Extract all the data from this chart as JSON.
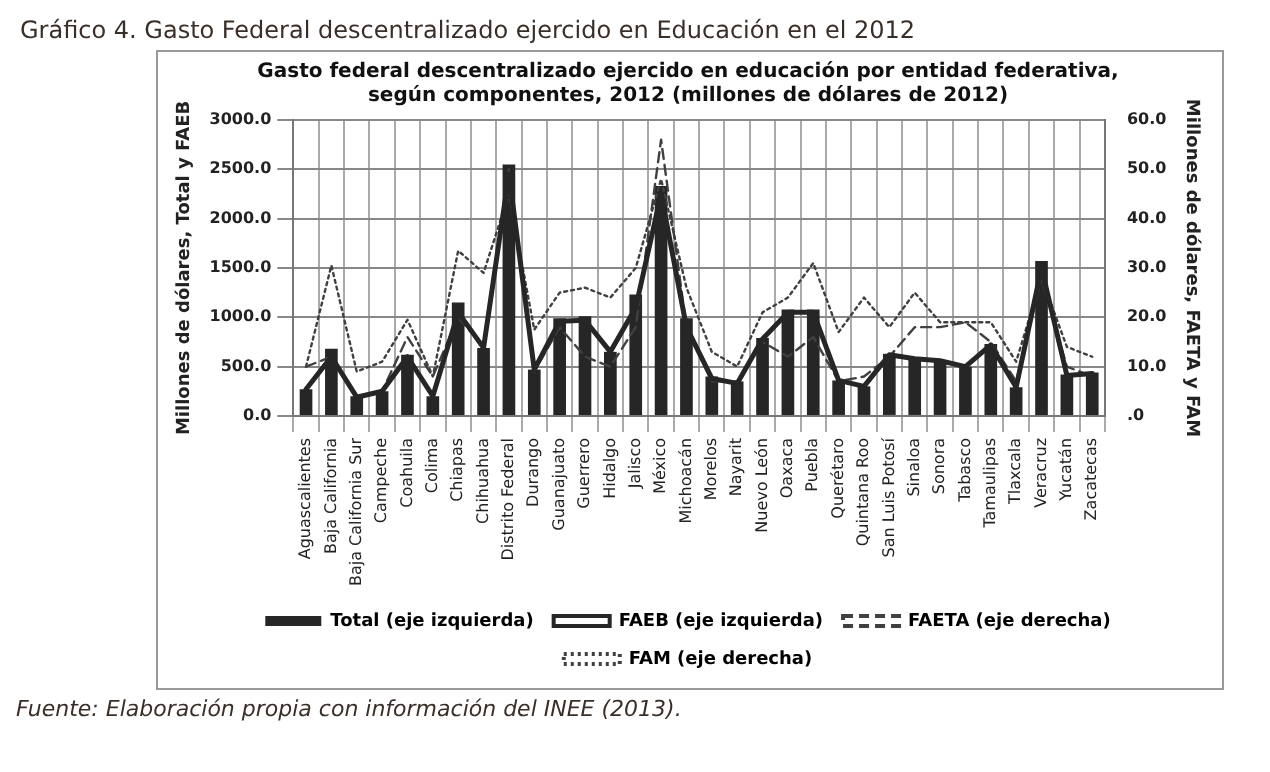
{
  "chart_data": {
    "type": "bar",
    "title": "Gráfico 4. Gasto Federal descentralizado ejercido en Educación en el 2012",
    "subtitle": "Gasto federal descentralizado ejercido en educación por entidad federativa, según componentes, 2012 (millones de dólares de 2012)",
    "ylabel": "Millones de dólares, Total y FAEB",
    "y2label": "Millones de dólares, FAETA y FAM",
    "annotations": [
      "Fuente: Elaboración propia con información del INEE (2013)."
    ],
    "categories": [
      "Aguascalientes",
      "Baja California",
      "Baja California Sur",
      "Campeche",
      "Coahuila",
      "Colima",
      "Chiapas",
      "Chihuahua",
      "Distrito Federal",
      "Durango",
      "Guanajuato",
      "Guerrero",
      "Hidalgo",
      "Jalisco",
      "México",
      "Michoacán",
      "Morelos",
      "Nayarit",
      "Nuevo León",
      "Oaxaca",
      "Puebla",
      "Querétaro",
      "Quintana Roo",
      "San Luis Potosí",
      "Sinaloa",
      "Sonora",
      "Tabasco",
      "Tamaulipas",
      "Tlaxcala",
      "Veracruz",
      "Yucatán",
      "Zacatecas"
    ],
    "series": [
      {
        "name": "Total (eje izquierda)",
        "color": "#262626",
        "values": [
          270,
          680,
          200,
          250,
          620,
          200,
          1150,
          690,
          2550,
          470,
          990,
          1010,
          650,
          1230,
          2330,
          990,
          400,
          350,
          790,
          1080,
          1080,
          360,
          300,
          630,
          590,
          560,
          500,
          730,
          290,
          1570,
          420,
          440
        ]
      },
      {
        "name": "FAEB (eje izquierda)",
        "type": "line",
        "color": "#262626",
        "line_style": "solid",
        "values": [
          270,
          600,
          190,
          250,
          600,
          200,
          1050,
          690,
          2450,
          470,
          960,
          970,
          650,
          1100,
          2250,
          900,
          380,
          330,
          780,
          1050,
          1050,
          360,
          300,
          620,
          580,
          560,
          500,
          720,
          290,
          1500,
          410,
          430
        ]
      },
      {
        "name": "FAETA (eje derecha)",
        "type": "line",
        "axis": "y2",
        "color": "#404040",
        "line_style": "dashed",
        "values": [
          10,
          12,
          4,
          5,
          16,
          8,
          20,
          14,
          50,
          9,
          18,
          12,
          10,
          18,
          56,
          18,
          7,
          7,
          15,
          12,
          16,
          7,
          8,
          12,
          18,
          18,
          19,
          15,
          7,
          28,
          10,
          8
        ]
      },
      {
        "name": "FAM (eje derecha)",
        "type": "line",
        "axis": "y2",
        "color": "#404040",
        "line_style": "dotted",
        "values": [
          10,
          30.5,
          9,
          11,
          19.5,
          8,
          33.5,
          29,
          45,
          17.5,
          25,
          26,
          24,
          30,
          48,
          26,
          13,
          10,
          21,
          24,
          31,
          17,
          24,
          18,
          25,
          19,
          19,
          19,
          11,
          28,
          14,
          12
        ]
      }
    ],
    "ylim": [
      0,
      3000
    ],
    "yticks": [
      {
        "value": 0,
        "label": "0.0"
      },
      {
        "value": 500,
        "label": "500.0"
      },
      {
        "value": 1000,
        "label": "1000.0"
      },
      {
        "value": 1500,
        "label": "1500.0"
      },
      {
        "value": 2000,
        "label": "2000.0"
      },
      {
        "value": 2500,
        "label": "2500.0"
      },
      {
        "value": 3000,
        "label": "3000.0"
      }
    ],
    "y2lim": [
      0,
      60
    ],
    "y2ticks": [
      {
        "value": 0,
        "label": ".0"
      },
      {
        "value": 10,
        "label": "10.0"
      },
      {
        "value": 20,
        "label": "20.0"
      },
      {
        "value": 30,
        "label": "30.0"
      },
      {
        "value": 40,
        "label": "40.0"
      },
      {
        "value": 50,
        "label": "50.0"
      },
      {
        "value": 60,
        "label": "60.0"
      }
    ],
    "grid": true,
    "legend": "bottom",
    "marker": "none"
  }
}
